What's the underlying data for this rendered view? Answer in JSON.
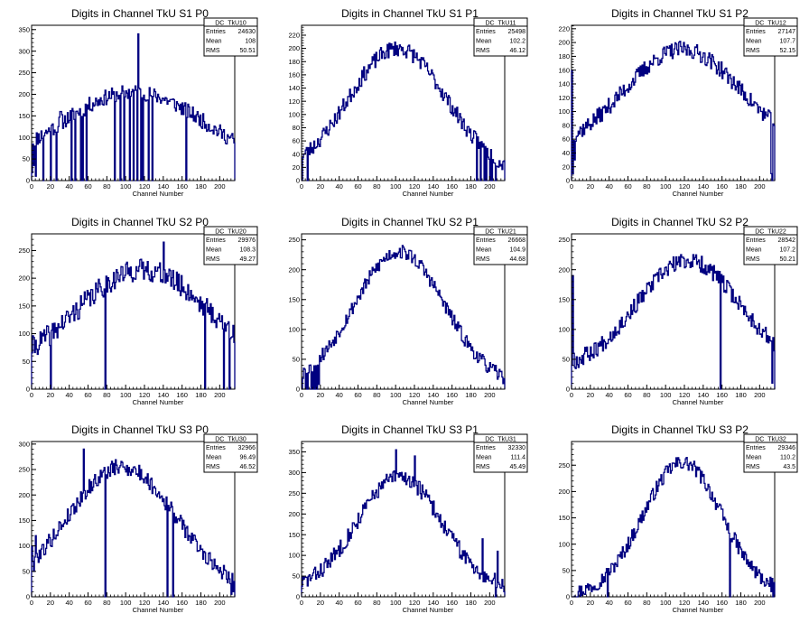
{
  "page": {
    "background": "#ffffff",
    "histogram_color": "#000080"
  },
  "chart_data": [
    {
      "type": "histogram",
      "title": "Digits in Channel TkU S1 P0",
      "xlabel": "Channel Number",
      "ylabel": "",
      "xlim": [
        0,
        216
      ],
      "ylim": [
        0,
        360
      ],
      "xticks": [
        0,
        20,
        40,
        60,
        80,
        100,
        120,
        140,
        160,
        180,
        200
      ],
      "yticks": [
        0,
        50,
        100,
        150,
        200,
        250,
        300,
        350
      ],
      "stats": {
        "name": "DC_TkU10",
        "rows": [
          {
            "label": "Entries",
            "value": "24630"
          },
          {
            "label": "Mean",
            "value": "108"
          },
          {
            "label": "RMS",
            "value": "50.51"
          }
        ]
      },
      "shape": {
        "peak": 205,
        "center": 108,
        "width": 78,
        "base": 20,
        "noise": 18,
        "seed": 11
      },
      "spikes": [
        [
          0,
          18
        ],
        [
          2,
          35
        ],
        [
          4,
          10
        ],
        [
          12,
          0
        ],
        [
          20,
          0
        ],
        [
          26,
          0
        ],
        [
          30,
          160
        ],
        [
          31,
          160
        ],
        [
          42,
          0
        ],
        [
          46,
          0
        ],
        [
          52,
          0
        ],
        [
          54,
          0
        ],
        [
          56,
          150
        ],
        [
          58,
          0
        ],
        [
          88,
          0
        ],
        [
          94,
          0
        ],
        [
          98,
          0
        ],
        [
          104,
          0
        ],
        [
          108,
          0
        ],
        [
          112,
          0
        ],
        [
          113,
          340
        ],
        [
          116,
          0
        ],
        [
          118,
          0
        ],
        [
          124,
          0
        ],
        [
          128,
          0
        ],
        [
          164,
          0
        ]
      ]
    },
    {
      "type": "histogram",
      "title": "Digits in Channel TkU S1 P1",
      "xlabel": "Channel Number",
      "ylabel": "",
      "xlim": [
        0,
        216
      ],
      "ylim": [
        0,
        235
      ],
      "xticks": [
        0,
        20,
        40,
        60,
        80,
        100,
        120,
        140,
        160,
        180,
        200
      ],
      "yticks": [
        0,
        20,
        40,
        60,
        80,
        100,
        120,
        140,
        160,
        180,
        200,
        220
      ],
      "stats": {
        "name": "DC_TkU11",
        "rows": [
          {
            "label": "Entries",
            "value": "25498"
          },
          {
            "label": "Mean",
            "value": "102.2"
          },
          {
            "label": "RMS",
            "value": "46.12"
          }
        ]
      },
      "shape": {
        "peak": 200,
        "center": 102,
        "width": 52,
        "base": 8,
        "noise": 12,
        "seed": 23
      },
      "spikes": [
        [
          0,
          0
        ],
        [
          2,
          40
        ],
        [
          6,
          0
        ],
        [
          186,
          0
        ],
        [
          190,
          0
        ],
        [
          194,
          0
        ],
        [
          196,
          0
        ],
        [
          200,
          0
        ],
        [
          202,
          0
        ],
        [
          206,
          0
        ],
        [
          210,
          30
        ]
      ]
    },
    {
      "type": "histogram",
      "title": "Digits in Channel TkU S1 P2",
      "xlabel": "Channel Number",
      "ylabel": "",
      "xlim": [
        0,
        216
      ],
      "ylim": [
        0,
        225
      ],
      "xticks": [
        0,
        20,
        40,
        60,
        80,
        100,
        120,
        140,
        160,
        180,
        200
      ],
      "yticks": [
        0,
        20,
        40,
        60,
        80,
        100,
        120,
        140,
        160,
        180,
        200,
        220
      ],
      "stats": {
        "name": "DC_TkU12",
        "rows": [
          {
            "label": "Entries",
            "value": "27147"
          },
          {
            "label": "Mean",
            "value": "107.7"
          },
          {
            "label": "RMS",
            "value": "52.15"
          }
        ]
      },
      "shape": {
        "peak": 190,
        "center": 118,
        "width": 62,
        "base": 40,
        "noise": 12,
        "seed": 37
      },
      "spikes": [
        [
          0,
          160
        ],
        [
          1,
          10
        ],
        [
          3,
          30
        ],
        [
          212,
          10
        ],
        [
          213,
          0
        ]
      ]
    },
    {
      "type": "histogram",
      "title": "Digits in Channel TkU S2 P0",
      "xlabel": "Channel Number",
      "ylabel": "",
      "xlim": [
        0,
        216
      ],
      "ylim": [
        0,
        280
      ],
      "xticks": [
        0,
        20,
        40,
        60,
        80,
        100,
        120,
        140,
        160,
        180,
        200
      ],
      "yticks": [
        0,
        50,
        100,
        150,
        200,
        250
      ],
      "stats": {
        "name": "DC_TkU20",
        "rows": [
          {
            "label": "Entries",
            "value": "29976"
          },
          {
            "label": "Mean",
            "value": "108.3"
          },
          {
            "label": "RMS",
            "value": "49.27"
          }
        ]
      },
      "shape": {
        "peak": 215,
        "center": 118,
        "width": 70,
        "base": 30,
        "noise": 20,
        "seed": 41
      },
      "spikes": [
        [
          20,
          0
        ],
        [
          78,
          0
        ],
        [
          140,
          265
        ],
        [
          184,
          0
        ],
        [
          204,
          0
        ],
        [
          210,
          0
        ],
        [
          214,
          115
        ]
      ]
    },
    {
      "type": "histogram",
      "title": "Digits in Channel TkU S2 P1",
      "xlabel": "Channel Number",
      "ylabel": "",
      "xlim": [
        0,
        216
      ],
      "ylim": [
        0,
        260
      ],
      "xticks": [
        0,
        20,
        40,
        60,
        80,
        100,
        120,
        140,
        160,
        180,
        200
      ],
      "yticks": [
        0,
        50,
        100,
        150,
        200,
        250
      ],
      "stats": {
        "name": "DC_TkU21",
        "rows": [
          {
            "label": "Entries",
            "value": "26668"
          },
          {
            "label": "Mean",
            "value": "104.9"
          },
          {
            "label": "RMS",
            "value": "44.68"
          }
        ]
      },
      "shape": {
        "peak": 230,
        "center": 104,
        "width": 48,
        "base": 5,
        "noise": 12,
        "seed": 53
      },
      "spikes": [
        [
          0,
          0
        ],
        [
          2,
          35
        ],
        [
          4,
          0
        ],
        [
          6,
          0
        ],
        [
          8,
          40
        ],
        [
          10,
          0
        ],
        [
          12,
          0
        ],
        [
          14,
          0
        ],
        [
          16,
          0
        ],
        [
          18,
          8
        ]
      ]
    },
    {
      "type": "histogram",
      "title": "Digits in Channel TkU S2 P2",
      "xlabel": "Channel Number",
      "ylabel": "",
      "xlim": [
        0,
        216
      ],
      "ylim": [
        0,
        260
      ],
      "xticks": [
        0,
        20,
        40,
        60,
        80,
        100,
        120,
        140,
        160,
        180,
        200
      ],
      "yticks": [
        0,
        50,
        100,
        150,
        200,
        250
      ],
      "stats": {
        "name": "DC_TkU22",
        "rows": [
          {
            "label": "Entries",
            "value": "28542"
          },
          {
            "label": "Mean",
            "value": "107.2"
          },
          {
            "label": "RMS",
            "value": "50.21"
          }
        ]
      },
      "shape": {
        "peak": 215,
        "center": 124,
        "width": 55,
        "base": 30,
        "noise": 14,
        "seed": 67
      },
      "spikes": [
        [
          0,
          40
        ],
        [
          1,
          190
        ],
        [
          2,
          60
        ],
        [
          14,
          70
        ],
        [
          158,
          0
        ],
        [
          213,
          10
        ]
      ]
    },
    {
      "type": "histogram",
      "title": "Digits in Channel TkU S3 P0",
      "xlabel": "Channel Number",
      "ylabel": "",
      "xlim": [
        0,
        216
      ],
      "ylim": [
        0,
        305
      ],
      "xticks": [
        0,
        20,
        40,
        60,
        80,
        100,
        120,
        140,
        160,
        180,
        200
      ],
      "yticks": [
        0,
        50,
        100,
        150,
        200,
        250,
        300
      ],
      "stats": {
        "name": "DC_TkU30",
        "rows": [
          {
            "label": "Entries",
            "value": "32966"
          },
          {
            "label": "Mean",
            "value": "96.49"
          },
          {
            "label": "RMS",
            "value": "46.52"
          }
        ]
      },
      "shape": {
        "peak": 255,
        "center": 96,
        "width": 58,
        "base": 5,
        "noise": 16,
        "seed": 79
      },
      "spikes": [
        [
          0,
          100
        ],
        [
          2,
          50
        ],
        [
          4,
          120
        ],
        [
          55,
          290
        ],
        [
          78,
          0
        ],
        [
          144,
          0
        ],
        [
          150,
          0
        ],
        [
          212,
          5
        ],
        [
          214,
          10
        ]
      ]
    },
    {
      "type": "histogram",
      "title": "Digits in Channel TkU S3 P1",
      "xlabel": "Channel Number",
      "ylabel": "",
      "xlim": [
        0,
        216
      ],
      "ylim": [
        0,
        375
      ],
      "xticks": [
        0,
        20,
        40,
        60,
        80,
        100,
        120,
        140,
        160,
        180,
        200
      ],
      "yticks": [
        0,
        50,
        100,
        150,
        200,
        250,
        300,
        350
      ],
      "stats": {
        "name": "DC_TkU31",
        "rows": [
          {
            "label": "Entries",
            "value": "32330"
          },
          {
            "label": "Mean",
            "value": "111.4"
          },
          {
            "label": "RMS",
            "value": "45.49"
          }
        ]
      },
      "shape": {
        "peak": 290,
        "center": 104,
        "width": 45,
        "base": 15,
        "noise": 20,
        "seed": 83
      },
      "spikes": [
        [
          100,
          355
        ],
        [
          120,
          340
        ],
        [
          192,
          140
        ],
        [
          194,
          60
        ],
        [
          206,
          0
        ],
        [
          208,
          110
        ],
        [
          210,
          30
        ]
      ]
    },
    {
      "type": "histogram",
      "title": "Digits in Channel TkU S3 P2",
      "xlabel": "Channel Number",
      "ylabel": "",
      "xlim": [
        0,
        216
      ],
      "ylim": [
        0,
        295
      ],
      "xticks": [
        0,
        20,
        40,
        60,
        80,
        100,
        120,
        140,
        160,
        180,
        200
      ],
      "yticks": [
        0,
        50,
        100,
        150,
        200,
        250
      ],
      "stats": {
        "name": "DC_TkU32",
        "rows": [
          {
            "label": "Entries",
            "value": "29346"
          },
          {
            "label": "Mean",
            "value": "110.2"
          },
          {
            "label": "RMS",
            "value": "43.5"
          }
        ]
      },
      "shape": {
        "peak": 255,
        "center": 118,
        "width": 42,
        "base": 2,
        "noise": 14,
        "seed": 97
      },
      "spikes": [
        [
          0,
          0
        ],
        [
          2,
          0
        ],
        [
          38,
          0
        ],
        [
          168,
          0
        ],
        [
          212,
          10
        ],
        [
          214,
          0
        ]
      ]
    }
  ]
}
